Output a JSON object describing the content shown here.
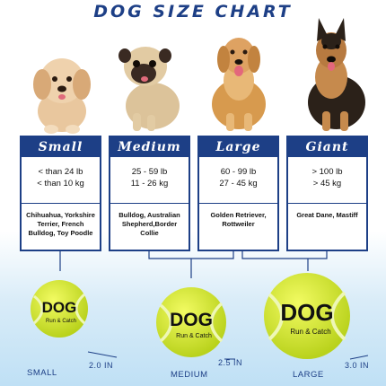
{
  "title": "DOG SIZE CHART",
  "cards": [
    {
      "name": "Small",
      "weight_lb": "< than 24 lb",
      "weight_kg": "< than 10 kg",
      "breeds": "Chihuahua, Yorkshire Terrier, French Bulldog, Toy Poodle"
    },
    {
      "name": "Medium",
      "weight_lb": "25 - 59 lb",
      "weight_kg": "11 - 26 kg",
      "breeds": "Bulldog, Australian Shepherd,Border Collie"
    },
    {
      "name": "Large",
      "weight_lb": "60 - 99 lb",
      "weight_kg": "27 - 45 kg",
      "breeds": "Golden Retriever, Rottweiler"
    },
    {
      "name": "Giant",
      "weight_lb": "> 100 lb",
      "weight_kg": ">  45   kg",
      "breeds": "Great Dane, Mastiff"
    }
  ],
  "balls": [
    {
      "label": "SMALL",
      "size": "2.0 IN",
      "brand": "DOG",
      "sub": "Run & Catch"
    },
    {
      "label": "MEDIUM",
      "size": "2.5 IN",
      "brand": "DOG",
      "sub": "Run & Catch"
    },
    {
      "label": "LARGE",
      "size": "3.0 IN",
      "brand": "DOG",
      "sub": "Run & Catch"
    }
  ],
  "colors": {
    "navy": "#1d3f86",
    "ball": "#d9ee2a",
    "ball_dark": "#b9d21c"
  },
  "icons": [
    "puppy-illustration",
    "pug-illustration",
    "golden-retriever-illustration",
    "german-shepherd-illustration",
    "tennis-ball-icon",
    "paw-icon"
  ]
}
